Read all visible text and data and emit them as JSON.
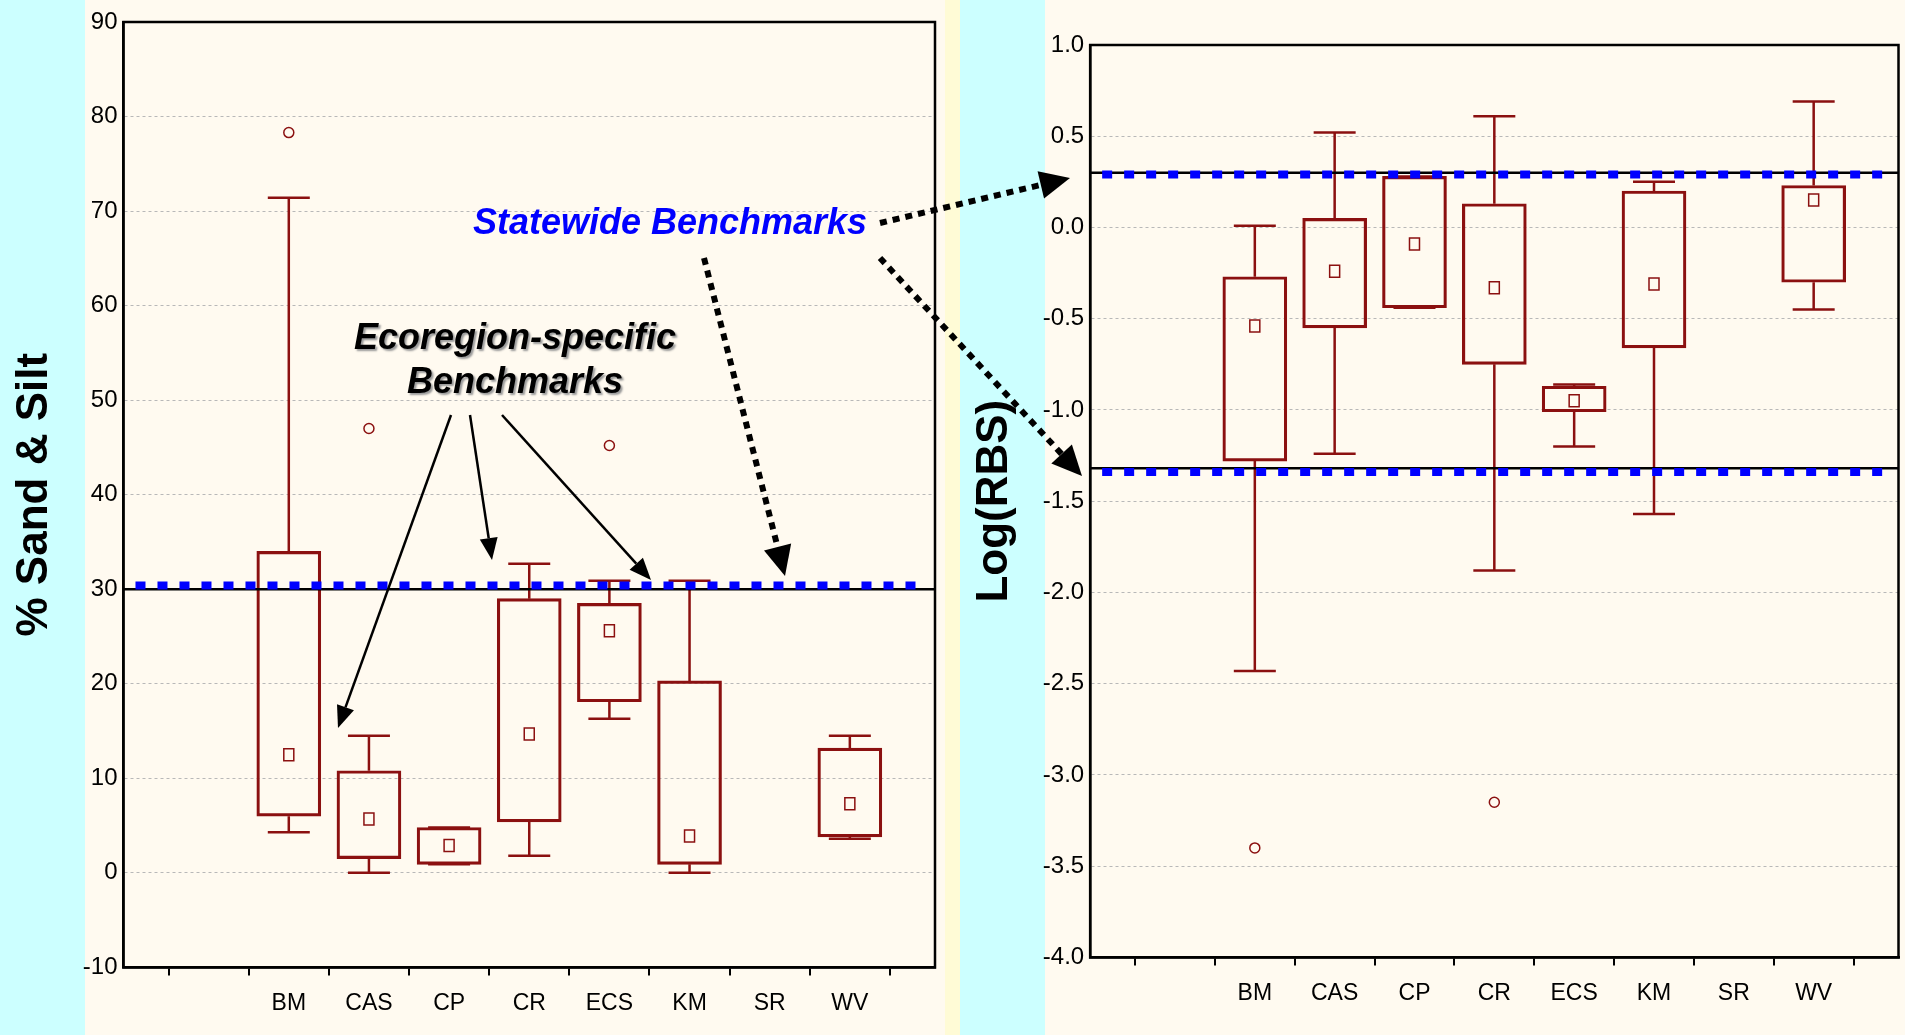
{
  "chart_data": [
    {
      "type": "box",
      "ylabel": "% Sand & Silt",
      "categories": [
        "BM",
        "CAS",
        "CP",
        "CR",
        "ECS",
        "KM",
        "SR",
        "WV"
      ],
      "series": [
        {
          "color": "#8b1010",
          "boxes": [
            {
              "low": 4.3,
              "q1": 6,
              "median": 12.5,
              "q3": 34,
              "high": 71.4,
              "outliers": [
                78.3
              ]
            },
            {
              "low": 0,
              "q1": 1.5,
              "median": 5.7,
              "q3": 10.8,
              "high": 14.5,
              "outliers": [
                47
              ]
            },
            {
              "low": 0.9,
              "q1": 0.9,
              "median": 2.9,
              "q3": 4.8,
              "high": 4.8
            },
            {
              "low": 1.8,
              "q1": 5.4,
              "median": 14.7,
              "q3": 29,
              "high": 32.7
            },
            {
              "low": 16.3,
              "q1": 18.1,
              "median": 25.6,
              "q3": 28.5,
              "high": 30.9,
              "outliers": [
                45.2
              ]
            },
            {
              "low": 0,
              "q1": 0.9,
              "median": 3.9,
              "q3": 20.3,
              "high": 30.9
            },
            null,
            {
              "low": 3.6,
              "q1": 3.8,
              "median": 7.3,
              "q3": 13.2,
              "high": 14.5
            }
          ]
        }
      ],
      "ylim": [
        -10,
        90
      ],
      "yticks": [
        -10,
        0,
        10,
        20,
        30,
        40,
        50,
        60,
        70,
        80,
        90
      ],
      "grid": "y",
      "ref_lines": [
        {
          "axis": "y",
          "value": 30,
          "color": "#000000",
          "line_style": "solid"
        },
        {
          "axis": "y",
          "value": 30.4,
          "color": "#0000ff",
          "line_style": "dotted"
        }
      ],
      "annotations": [
        "Statewide Benchmarks",
        "Ecoregion-specific Benchmarks"
      ]
    },
    {
      "type": "box",
      "ylabel": "Log(RBS)",
      "categories": [
        "BM",
        "CAS",
        "CP",
        "CR",
        "ECS",
        "KM",
        "SR",
        "WV"
      ],
      "series": [
        {
          "color": "#8b1010",
          "boxes": [
            {
              "low": -2.43,
              "q1": -1.28,
              "median": -0.54,
              "q3": -0.27,
              "high": 0.01,
              "outliers": [
                -3.4
              ]
            },
            {
              "low": -1.24,
              "q1": -0.55,
              "median": -0.24,
              "q3": 0.05,
              "high": 0.52
            },
            {
              "low": -0.44,
              "q1": -0.44,
              "median": -0.09,
              "q3": 0.28,
              "high": 0.28
            },
            {
              "low": -1.88,
              "q1": -0.75,
              "median": -0.33,
              "q3": 0.13,
              "high": 0.61,
              "outliers": [
                -3.15
              ]
            },
            {
              "low": -1.2,
              "q1": -1.01,
              "median": -0.95,
              "q3": -0.87,
              "high": -0.86
            },
            {
              "low": -1.57,
              "q1": -0.66,
              "median": -0.31,
              "q3": 0.2,
              "high": 0.25
            },
            null,
            {
              "low": -0.45,
              "q1": -0.3,
              "median": 0.15,
              "q3": 0.23,
              "high": 0.69
            }
          ]
        }
      ],
      "ylim": [
        -4,
        1
      ],
      "yticks": [
        {
          "value": -4,
          "label": "-4.0"
        },
        {
          "value": -3.5,
          "label": "-3.5"
        },
        {
          "value": -3,
          "label": "-3.0"
        },
        {
          "value": -2.5,
          "label": "-2.5"
        },
        {
          "value": -2,
          "label": "-2.0"
        },
        {
          "value": -1.5,
          "label": "-1.5"
        },
        {
          "value": -1,
          "label": "-1.0"
        },
        {
          "value": -0.5,
          "label": "-0.5"
        },
        {
          "value": 0,
          "label": "0.0"
        },
        {
          "value": 0.5,
          "label": "0.5"
        },
        {
          "value": 1,
          "label": "1.0"
        }
      ],
      "grid": "y",
      "ref_lines": [
        {
          "axis": "y",
          "value": 0.3,
          "color": "#000000",
          "line_style": "solid"
        },
        {
          "axis": "y",
          "value": 0.29,
          "color": "#0000ff",
          "line_style": "dotted"
        },
        {
          "axis": "y",
          "value": -1.32,
          "color": "#000000",
          "line_style": "solid"
        },
        {
          "axis": "y",
          "value": -1.34,
          "color": "#0000ff",
          "line_style": "dotted"
        }
      ]
    }
  ]
}
